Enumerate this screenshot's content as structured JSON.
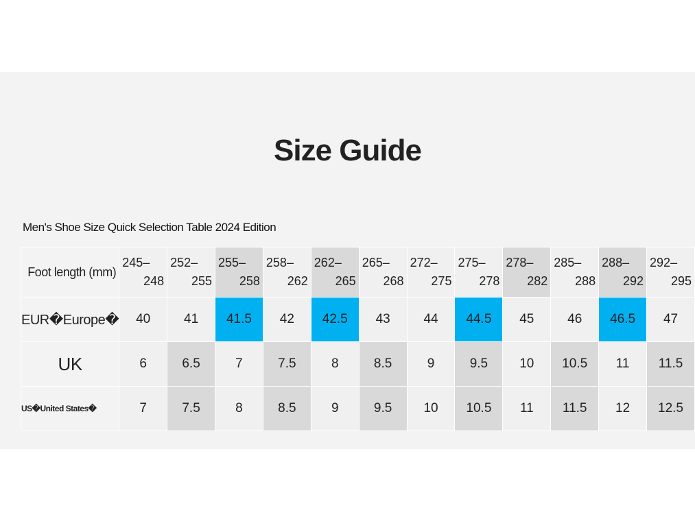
{
  "header": {
    "title": "Size Guide",
    "subtitle": "Men's Shoe Size Quick Selection Table 2024 Edition"
  },
  "table": {
    "rows": [
      [
        "Foot length (mm)",
        "245–248",
        "252–255",
        "255–258",
        "258–262",
        "262–265",
        "265–268",
        "272–275",
        "275–278",
        "278–282",
        "285–288",
        "288–292",
        "292–295"
      ],
      [
        "EUR�Europe�",
        "40",
        "41",
        "41.5",
        "42",
        "42.5",
        "43",
        "44",
        "44.5",
        "45",
        "46",
        "46.5",
        "47"
      ],
      [
        "UK",
        "6",
        "6.5",
        "7",
        "7.5",
        "8",
        "8.5",
        "9",
        "9.5",
        "10",
        "10.5",
        "11",
        "11.5"
      ],
      [
        "US�United States�",
        "7",
        "7.5",
        "8",
        "8.5",
        "9",
        "9.5",
        "10",
        "10.5",
        "11",
        "11.5",
        "12",
        "12.5"
      ]
    ]
  }
}
